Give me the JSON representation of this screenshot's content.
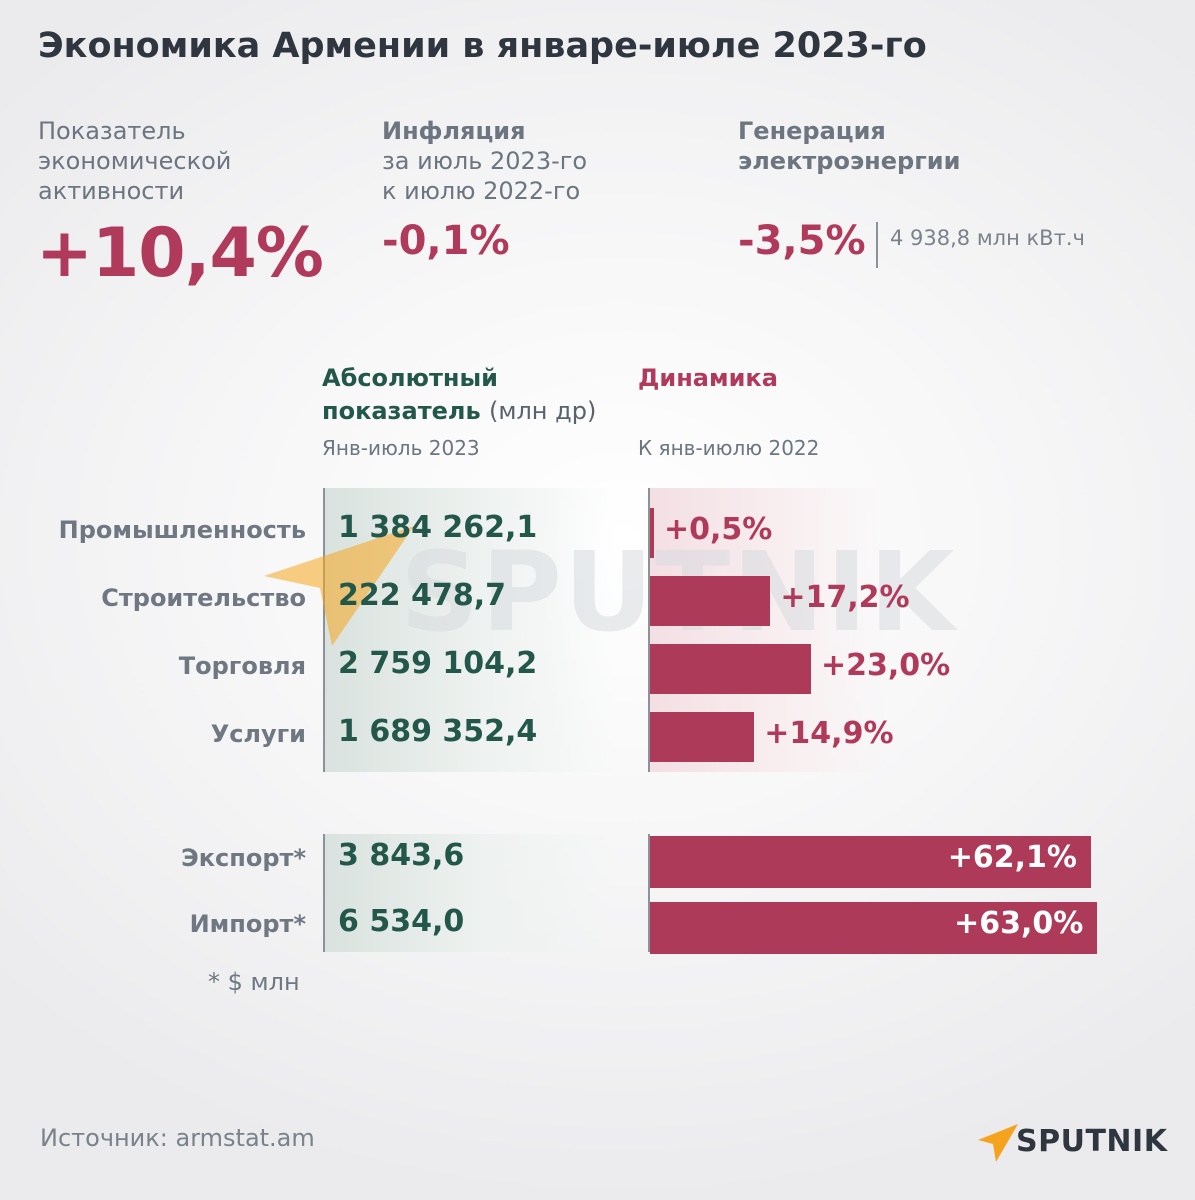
{
  "title": "Экономика Армении в январе-июле 2023-го",
  "kpis": {
    "activity": {
      "label_lines": [
        "Показатель",
        "экономической",
        "активности"
      ],
      "value": "+10,4%"
    },
    "inflation": {
      "label_bold": "Инфляция",
      "label_lines": [
        "за июль 2023-го",
        "к июлю 2022-го"
      ],
      "value": "-0,1%"
    },
    "electricity": {
      "label_lines": [
        "Генерация",
        "электроэнергии"
      ],
      "value": "-3,5%",
      "aside": "4 938,8 млн кВт.ч"
    }
  },
  "columns": {
    "absolute": {
      "title_line1": "Абсолютный",
      "title_line2": "показатель",
      "unit": "(млн др)",
      "subtitle": "Янв-июль 2023",
      "color": "#23574a"
    },
    "dynamics": {
      "title": "Динамика",
      "subtitle": "К янв-июлю 2022",
      "color": "#b03a5b"
    }
  },
  "footnote": "* $ млн",
  "source": "Источник: armstat.am",
  "brand": {
    "logo_text": "SPUTNIK",
    "watermark_text": "SPUTNIK",
    "logo_icon": "sputnik-arrow-icon"
  },
  "chart_data": {
    "type": "bar",
    "orientation": "horizontal",
    "groups": [
      {
        "categories": [
          "Промышленность",
          "Строительство",
          "Торговля",
          "Услуги"
        ],
        "absolute": [
          "1 384 262,1",
          "222 478,7",
          "2 759 104,2",
          "1 689 352,4"
        ],
        "absolute_values": [
          1384262.1,
          222478.7,
          2759104.2,
          1689352.4
        ],
        "dynamics_labels": [
          "+0,5%",
          "+17,2%",
          "+23,0%",
          "+14,9%"
        ],
        "values": [
          0.5,
          17.2,
          23.0,
          14.9
        ]
      },
      {
        "categories": [
          "Экспорт*",
          "Импорт*"
        ],
        "absolute": [
          "3 843,6",
          "6 534,0"
        ],
        "absolute_values": [
          3843.6,
          6534.0
        ],
        "dynamics_labels": [
          "+62,1%",
          "+63,0%"
        ],
        "values": [
          62.1,
          63.0
        ]
      }
    ],
    "bar_color": "#ae3a59"
  }
}
